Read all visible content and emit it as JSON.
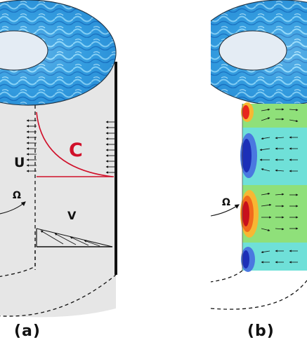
{
  "panel_a": {
    "label": "(a)",
    "velocity_u": "U",
    "velocity_v": "V",
    "concentration_label": "C",
    "rotation_symbol": "Ω"
  },
  "panel_b": {
    "label": "(b)",
    "rotation_symbol": "Ω"
  },
  "colors": {
    "annulus_blue": "#1f8fd6",
    "annulus_light": "#8fd8f5",
    "cylinder_gray": "#e6e6e6",
    "inner_hole": "#e4ecf4",
    "concentration_curve": "#d0102a",
    "field_green": "#8fe07a",
    "field_cyan": "#6fe0d8",
    "cell_red": "#e8261c",
    "cell_blue": "#1c2fb8"
  }
}
